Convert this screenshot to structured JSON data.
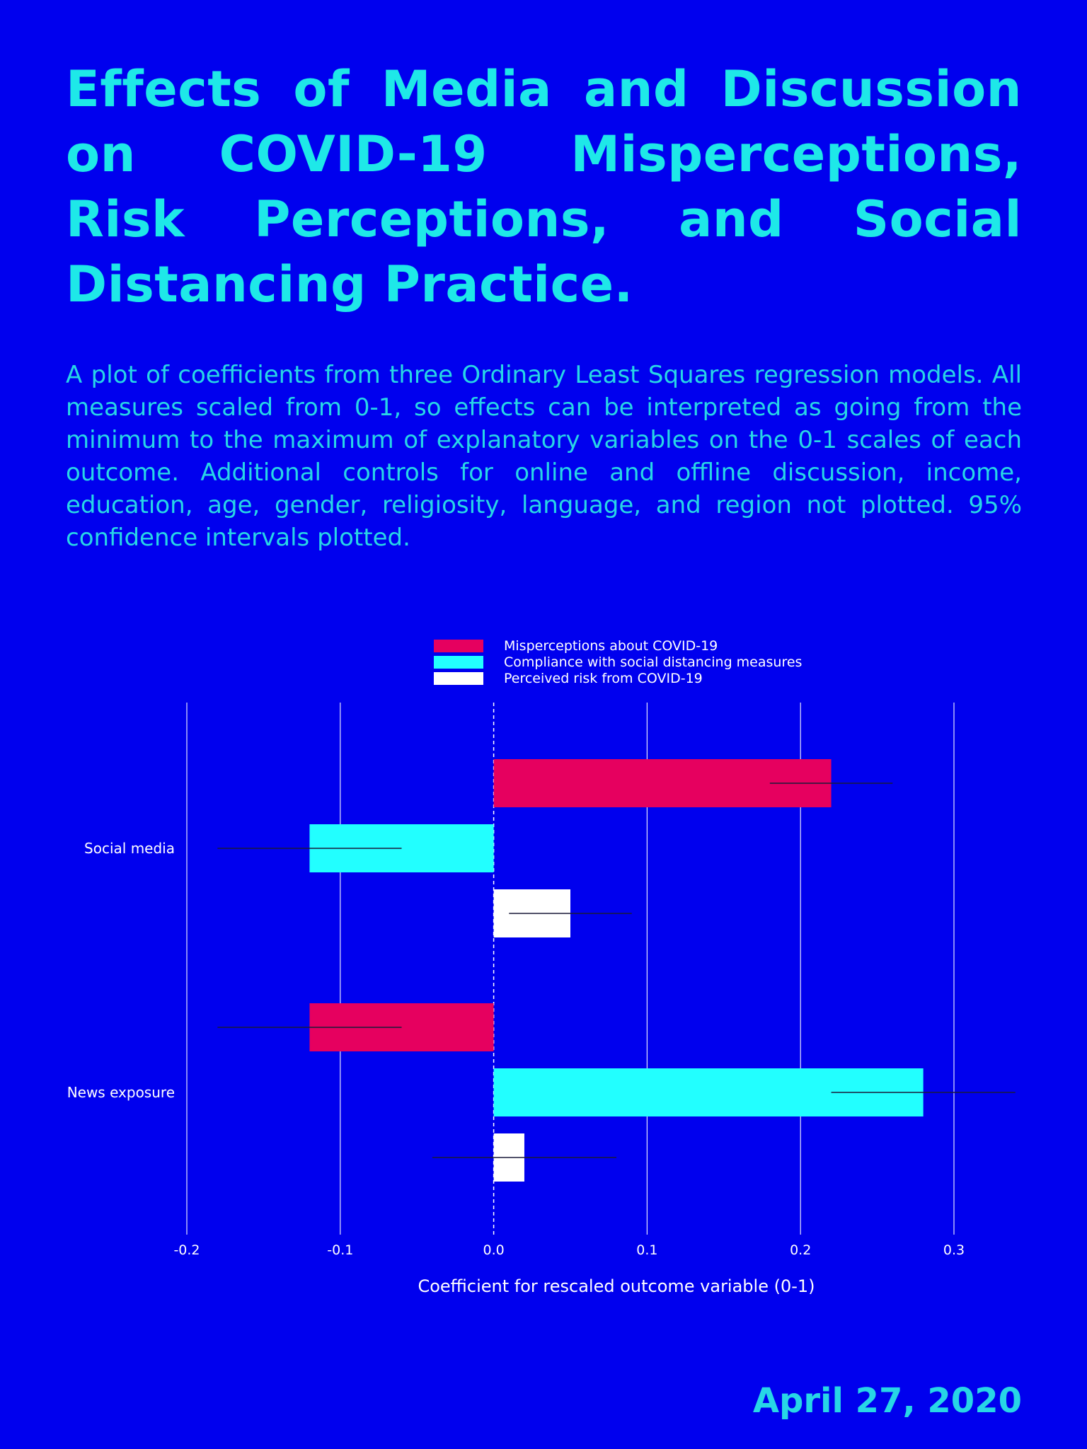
{
  "title": "Effects of Media and Discussion on COVID-19 Misperceptions, Risk Perceptions, and Social Distancing Practice.",
  "description": "A plot of coefficients from three Ordinary Least Squares regression models. All measures scaled from 0-1, so effects can be interpreted as going from the minimum to the maximum of explanatory variables on the 0-1 scales of each outcome. Additional controls for online and offline discussion, income, education, age, gender, religiosity, language, and region not plotted. 95% confidence intervals plotted.",
  "footer_date": "April 27, 2020",
  "colors": {
    "background": "#0000ee",
    "title": "#1ee8e8",
    "misperceptions": "#e6005f",
    "compliance": "#22ffff",
    "risk": "#ffffff"
  },
  "chart_data": {
    "type": "bar",
    "orientation": "horizontal",
    "categories": [
      "Social media",
      "News exposure"
    ],
    "series": [
      {
        "name": "Misperceptions about COVID-19",
        "color": "#e6005f",
        "values": [
          0.22,
          -0.12
        ],
        "ci_low": [
          0.18,
          -0.18
        ],
        "ci_high": [
          0.26,
          -0.06
        ]
      },
      {
        "name": "Compliance with social distancing measures",
        "color": "#22ffff",
        "values": [
          -0.12,
          0.28
        ],
        "ci_low": [
          -0.18,
          0.22
        ],
        "ci_high": [
          -0.06,
          0.34
        ]
      },
      {
        "name": "Perceived risk from COVID-19",
        "color": "#ffffff",
        "values": [
          0.05,
          0.02
        ],
        "ci_low": [
          0.01,
          -0.04
        ],
        "ci_high": [
          0.09,
          0.08
        ]
      }
    ],
    "xlim": [
      -0.2,
      0.3
    ],
    "xticks": [
      "-0.2",
      "-0.1",
      "0.0",
      "0.1",
      "0.2",
      "0.3"
    ],
    "xlabel": "Coefficient for rescaled outcome variable (0-1)",
    "ylabel": "",
    "grid": true,
    "legend_position": "top-center"
  }
}
